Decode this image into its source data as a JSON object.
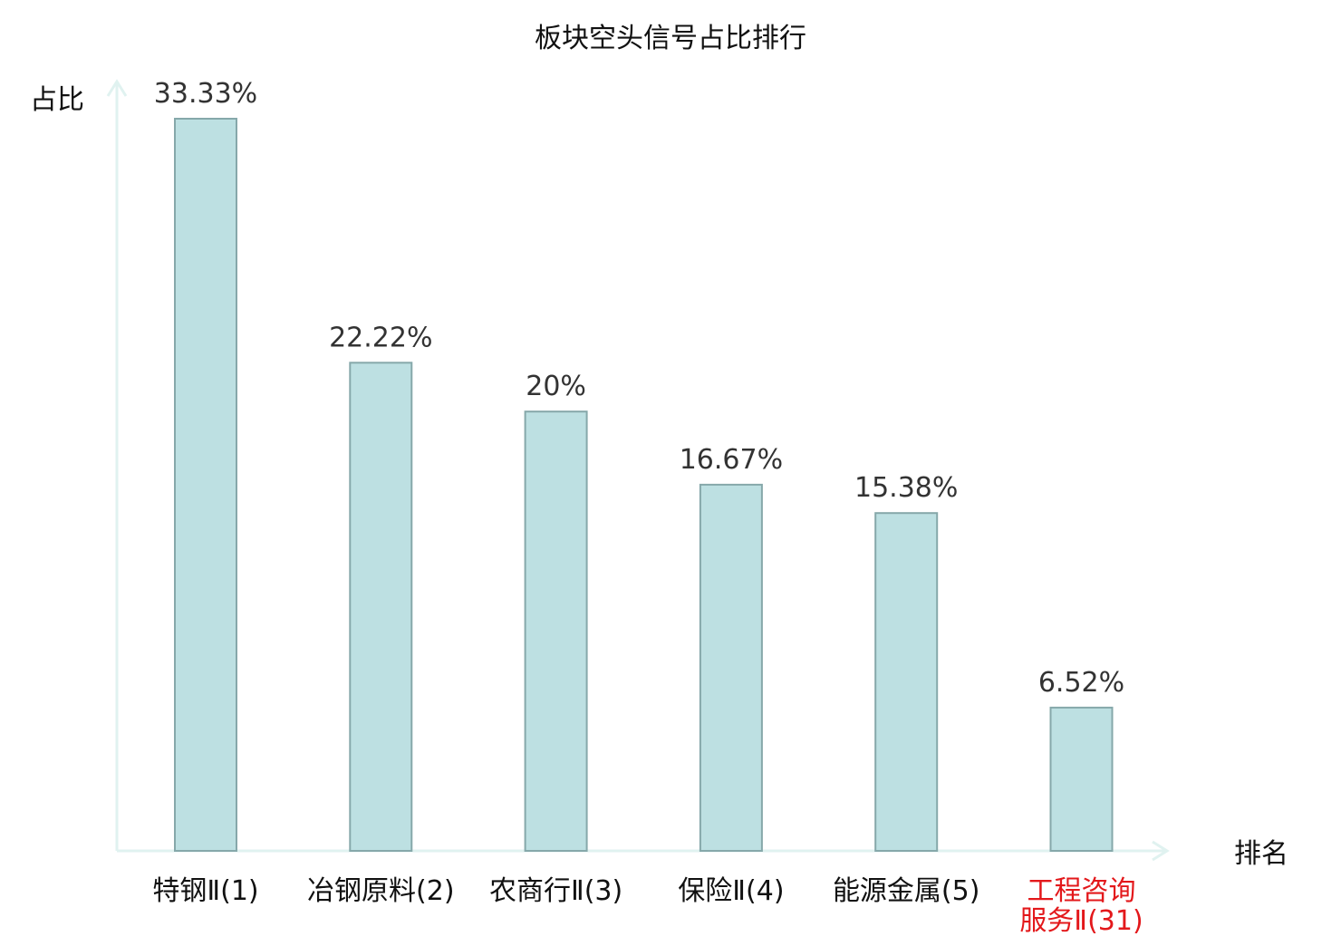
{
  "chart_data": {
    "type": "bar",
    "title": "板块空头信号占比排行",
    "xlabel": "排名",
    "ylabel": "占比",
    "categories": [
      "特钢Ⅱ(1)",
      "冶钢原料(2)",
      "农商行Ⅱ(3)",
      "保险Ⅱ(4)",
      "能源金属(5)",
      "工程咨询服务Ⅱ(31)"
    ],
    "category_lines": [
      [
        "特钢Ⅱ(1)"
      ],
      [
        "冶钢原料(2)"
      ],
      [
        "农商行Ⅱ(3)"
      ],
      [
        "保险Ⅱ(4)"
      ],
      [
        "能源金属(5)"
      ],
      [
        "工程咨询",
        "服务Ⅱ(31)"
      ]
    ],
    "values": [
      33.33,
      22.22,
      20,
      16.67,
      15.38,
      6.52
    ],
    "value_labels": [
      "33.33%",
      "22.22%",
      "20%",
      "16.67%",
      "15.38%",
      "6.52%"
    ],
    "highlight_index": 5,
    "ylim": [
      0,
      33.33
    ],
    "grid": false,
    "legend": "none",
    "colors": {
      "bar_fill": "#bde0e2",
      "bar_stroke": "#86a8aa",
      "axis": "#e0f2f0",
      "text": "#111111",
      "value_text": "#333333",
      "highlight_text": "#e3181b"
    }
  }
}
